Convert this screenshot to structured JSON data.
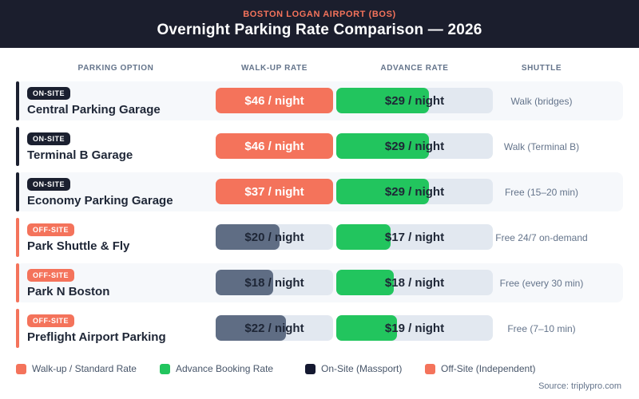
{
  "header": {
    "kicker": "BOSTON LOGAN AIRPORT (BOS)",
    "title": "Overnight Parking Rate Comparison — 2026"
  },
  "columns": {
    "option": "PARKING OPTION",
    "walkup": "WALK-UP RATE",
    "advance": "ADVANCE RATE",
    "shuttle": "SHUTTLE"
  },
  "rows": [
    {
      "site": "onsite",
      "badge": "ON-SITE",
      "name": "Central Parking Garage",
      "walkup_value": 46,
      "walkup_label": "$46 / night",
      "advance_value": 29,
      "advance_label": "$29 / night",
      "shuttle": "Walk (bridges)"
    },
    {
      "site": "onsite",
      "badge": "ON-SITE",
      "name": "Terminal B Garage",
      "walkup_value": 46,
      "walkup_label": "$46 / night",
      "advance_value": 29,
      "advance_label": "$29 / night",
      "shuttle": "Walk (Terminal B)"
    },
    {
      "site": "onsite",
      "badge": "ON-SITE",
      "name": "Economy Parking Garage",
      "walkup_value": 37,
      "walkup_label": "$37 / night",
      "advance_value": 29,
      "advance_label": "$29 / night",
      "shuttle": "Free (15–20 min)"
    },
    {
      "site": "offsite",
      "badge": "OFF-SITE",
      "name": "Park Shuttle & Fly",
      "walkup_value": 20,
      "walkup_label": "$20 / night",
      "advance_value": 17,
      "advance_label": "$17 / night",
      "shuttle": "Free 24/7 on-demand"
    },
    {
      "site": "offsite",
      "badge": "OFF-SITE",
      "name": "Park N Boston",
      "walkup_value": 18,
      "walkup_label": "$18 / night",
      "advance_value": 18,
      "advance_label": "$18 / night",
      "shuttle": "Free (every 30 min)"
    },
    {
      "site": "offsite",
      "badge": "OFF-SITE",
      "name": "Preflight Airport Parking",
      "walkup_value": 22,
      "walkup_label": "$22 / night",
      "advance_value": 19,
      "advance_label": "$19 / night",
      "shuttle": "Free (7–10 min)"
    }
  ],
  "legend": [
    {
      "label": "Walk-up / Standard Rate",
      "color": "#f4735b"
    },
    {
      "label": "Advance Booking Rate",
      "color": "#22c55e"
    },
    {
      "label": "On-Site (Massport)",
      "color": "#141830"
    },
    {
      "label": "Off-Site (Independent)",
      "color": "#f4735b"
    }
  ],
  "source": "Source: triplypro.com",
  "colors": {
    "header_bg": "#1b1e2d",
    "accent_orange": "#f4735b",
    "green": "#22c55e",
    "slate_bar": "#5f6d84",
    "track": "#e2e8f0",
    "dark_text": "#1e2636",
    "muted_text": "#64748b",
    "stripe_bg": "#f6f8fb"
  },
  "chart_data": {
    "type": "bar",
    "title": "Overnight Parking Rate Comparison — 2026",
    "subtitle": "BOSTON LOGAN AIRPORT (BOS)",
    "categories": [
      "Central Parking Garage",
      "Terminal B Garage",
      "Economy Parking Garage",
      "Park Shuttle & Fly",
      "Park N Boston",
      "Preflight Airport Parking"
    ],
    "series": [
      {
        "name": "Walk-up / Standard Rate",
        "values": [
          46,
          46,
          37,
          20,
          18,
          22
        ],
        "unit": "$ / night"
      },
      {
        "name": "Advance Booking Rate",
        "values": [
          29,
          29,
          29,
          17,
          18,
          19
        ],
        "unit": "$ / night"
      }
    ],
    "category_groups": [
      "On-Site (Massport)",
      "On-Site (Massport)",
      "On-Site (Massport)",
      "Off-Site (Independent)",
      "Off-Site (Independent)",
      "Off-Site (Independent)"
    ],
    "shuttle_notes": [
      "Walk (bridges)",
      "Walk (Terminal B)",
      "Free (15–20 min)",
      "Free 24/7 on-demand",
      "Free (every 30 min)",
      "Free (7–10 min)"
    ],
    "legend_position": "bottom",
    "orientation": "horizontal",
    "grid": false
  }
}
